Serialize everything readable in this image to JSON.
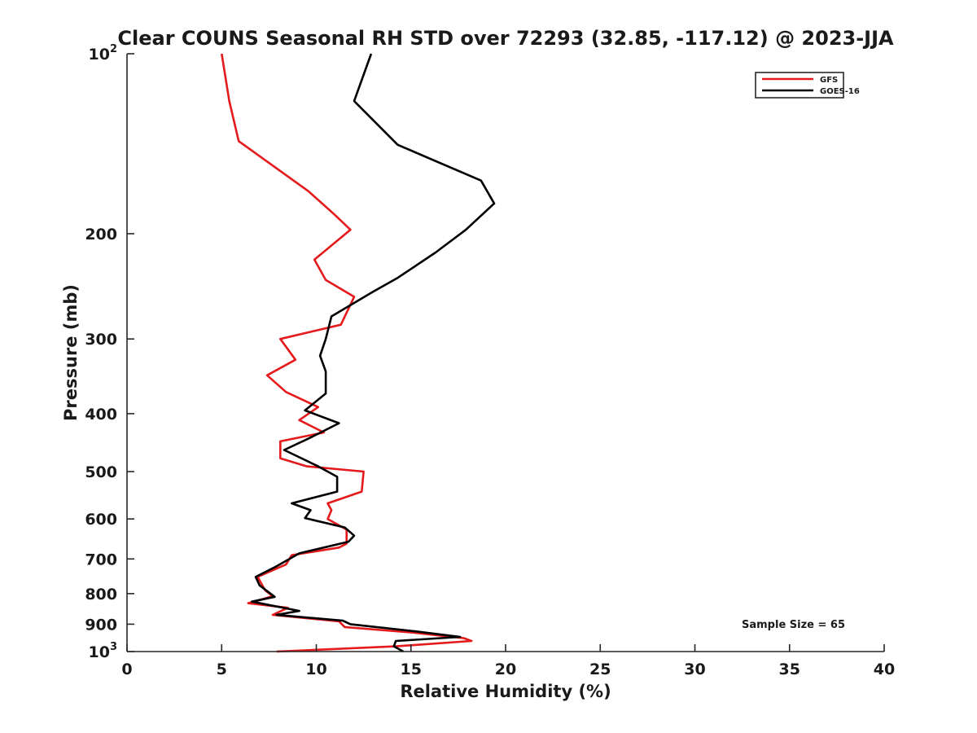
{
  "chart_data": {
    "type": "line",
    "title": "Clear COUNS Seasonal RH STD over 72293 (32.85, -117.12) @ 2023-JJA",
    "xlabel": "Relative Humidity (%)",
    "ylabel": "Pressure (mb)",
    "xlim": [
      0,
      40
    ],
    "ylim": [
      100,
      1000
    ],
    "yscale": "log",
    "yreversed": true,
    "xticks": [
      0,
      5,
      10,
      15,
      20,
      25,
      30,
      35,
      40
    ],
    "xtick_labels": [
      "0",
      "5",
      "10",
      "15",
      "20",
      "25",
      "30",
      "35",
      "40"
    ],
    "yticks": [
      100,
      200,
      300,
      400,
      500,
      600,
      700,
      800,
      900,
      1000
    ],
    "ytick_labels": [
      {
        "base": "10",
        "exp": "2"
      },
      {
        "base": "200",
        "exp": ""
      },
      {
        "base": "300",
        "exp": ""
      },
      {
        "base": "400",
        "exp": ""
      },
      {
        "base": "500",
        "exp": ""
      },
      {
        "base": "600",
        "exp": ""
      },
      {
        "base": "700",
        "exp": ""
      },
      {
        "base": "800",
        "exp": ""
      },
      {
        "base": "900",
        "exp": ""
      },
      {
        "base": "10",
        "exp": "3"
      }
    ],
    "legend_position": "top-right",
    "annotation": "Sample Size = 65",
    "series": [
      {
        "name": "GFS",
        "color": "#e41a1c",
        "points": [
          [
            5.0,
            100
          ],
          [
            5.4,
            120
          ],
          [
            5.9,
            140
          ],
          [
            9.6,
            170
          ],
          [
            10.9,
            185
          ],
          [
            11.8,
            197
          ],
          [
            9.9,
            221
          ],
          [
            10.5,
            239
          ],
          [
            12.0,
            255
          ],
          [
            11.3,
            284
          ],
          [
            8.1,
            300
          ],
          [
            8.9,
            325
          ],
          [
            7.4,
            345
          ],
          [
            8.4,
            368
          ],
          [
            10.1,
            390
          ],
          [
            9.1,
            410
          ],
          [
            10.4,
            430
          ],
          [
            8.1,
            445
          ],
          [
            8.1,
            475
          ],
          [
            9.5,
            490
          ],
          [
            12.5,
            500
          ],
          [
            12.4,
            540
          ],
          [
            10.6,
            565
          ],
          [
            10.8,
            580
          ],
          [
            10.6,
            600
          ],
          [
            11.6,
            625
          ],
          [
            11.6,
            660
          ],
          [
            11.2,
            670
          ],
          [
            8.7,
            690
          ],
          [
            8.4,
            715
          ],
          [
            6.9,
            750
          ],
          [
            7.3,
            790
          ],
          [
            7.7,
            808
          ],
          [
            6.4,
            830
          ],
          [
            8.5,
            845
          ],
          [
            7.7,
            868
          ],
          [
            11.2,
            890
          ],
          [
            11.5,
            910
          ],
          [
            15.2,
            930
          ],
          [
            17.8,
            950
          ],
          [
            18.2,
            960
          ],
          [
            14.2,
            980
          ],
          [
            7.9,
            1000
          ]
        ]
      },
      {
        "name": "GOES-16",
        "color": "#000000",
        "points": [
          [
            12.9,
            100
          ],
          [
            12.0,
            120
          ],
          [
            14.3,
            142
          ],
          [
            18.7,
            163
          ],
          [
            19.4,
            178
          ],
          [
            17.9,
            197
          ],
          [
            16.3,
            215
          ],
          [
            14.3,
            237
          ],
          [
            13.0,
            250
          ],
          [
            10.8,
            275
          ],
          [
            10.5,
            300
          ],
          [
            10.2,
            320
          ],
          [
            10.5,
            340
          ],
          [
            10.5,
            370
          ],
          [
            9.4,
            395
          ],
          [
            11.2,
            415
          ],
          [
            9.6,
            440
          ],
          [
            8.3,
            460
          ],
          [
            10.1,
            490
          ],
          [
            11.1,
            510
          ],
          [
            11.1,
            540
          ],
          [
            8.7,
            565
          ],
          [
            9.7,
            580
          ],
          [
            9.4,
            598
          ],
          [
            11.5,
            620
          ],
          [
            12.0,
            640
          ],
          [
            11.7,
            655
          ],
          [
            9.1,
            685
          ],
          [
            7.9,
            720
          ],
          [
            6.8,
            750
          ],
          [
            7.0,
            775
          ],
          [
            7.8,
            810
          ],
          [
            6.6,
            825
          ],
          [
            9.1,
            855
          ],
          [
            7.9,
            868
          ],
          [
            11.4,
            888
          ],
          [
            11.8,
            900
          ],
          [
            15.2,
            925
          ],
          [
            17.6,
            945
          ],
          [
            14.2,
            960
          ],
          [
            14.1,
            980
          ],
          [
            14.6,
            1000
          ]
        ]
      }
    ]
  }
}
